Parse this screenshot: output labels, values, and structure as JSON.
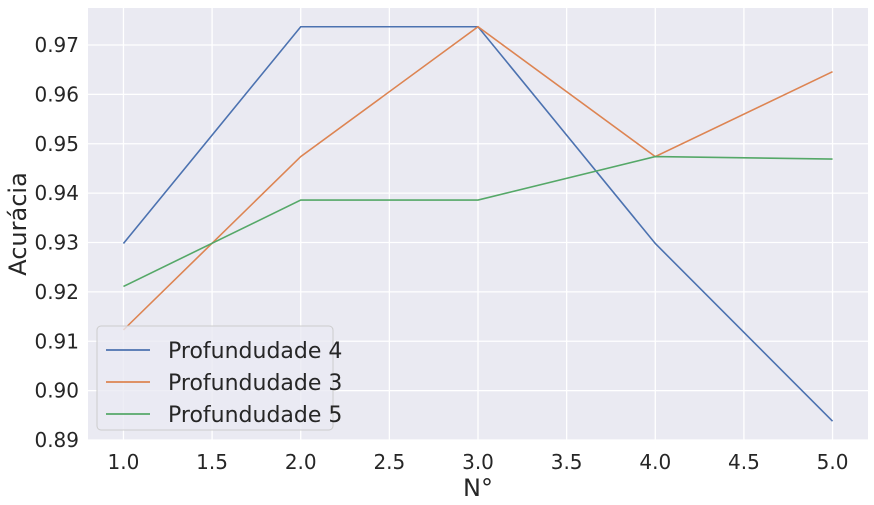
{
  "chart_data": {
    "type": "line",
    "title": "",
    "xlabel": "N°",
    "ylabel": "Acurácia",
    "x": [
      1.0,
      2.0,
      3.0,
      4.0,
      5.0
    ],
    "xlim": [
      0.8,
      5.2
    ],
    "ylim": [
      0.89,
      0.9775
    ],
    "x_ticks": [
      "1.0",
      "1.5",
      "2.0",
      "2.5",
      "3.0",
      "3.5",
      "4.0",
      "4.5",
      "5.0"
    ],
    "y_ticks": [
      "0.89",
      "0.90",
      "0.91",
      "0.92",
      "0.93",
      "0.94",
      "0.95",
      "0.96",
      "0.97"
    ],
    "grid": true,
    "legend_position": "bottom-left",
    "series": [
      {
        "name": "Profundudade 4",
        "color": "#4c72b0",
        "values": [
          0.9298,
          0.9737,
          0.9737,
          0.9298,
          0.8938
        ]
      },
      {
        "name": "Profundudade 3",
        "color": "#dd8452",
        "values": [
          0.9123,
          0.9474,
          0.9737,
          0.9474,
          0.9646
        ]
      },
      {
        "name": "Profundudade 5",
        "color": "#55a868",
        "values": [
          0.9211,
          0.9386,
          0.9386,
          0.9474,
          0.9469
        ]
      }
    ]
  }
}
